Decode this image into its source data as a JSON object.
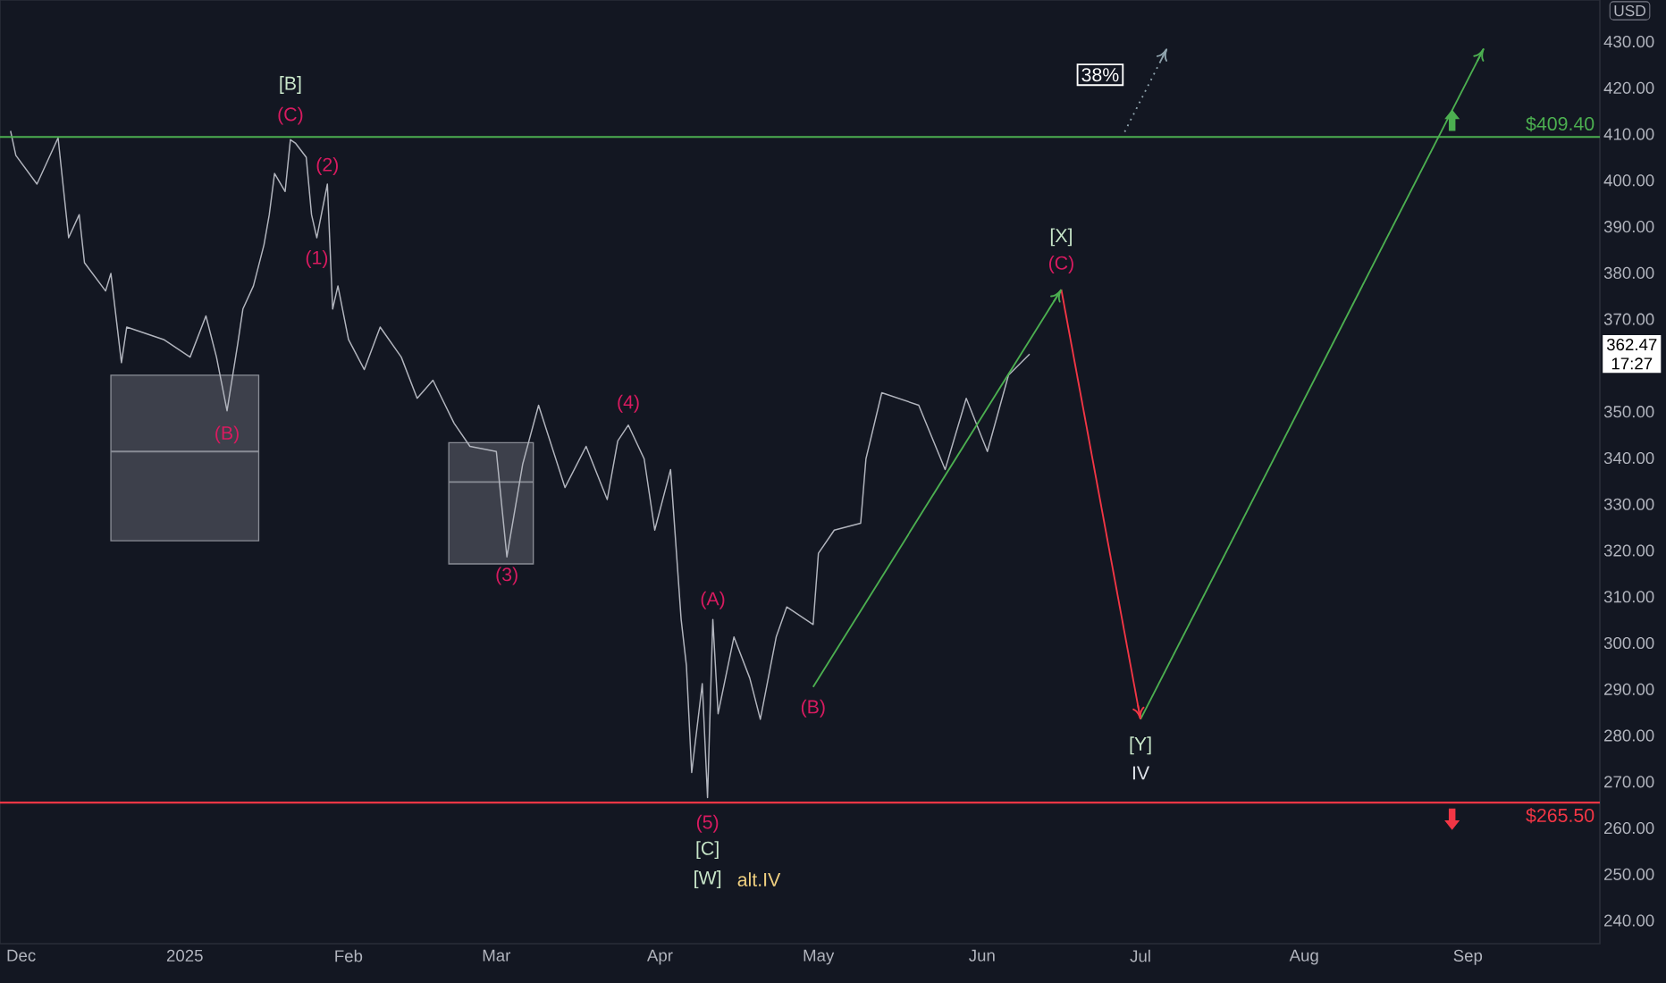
{
  "chart_data": {
    "type": "line",
    "xlim": [
      "2024-11-27",
      "2025-09-26"
    ],
    "ylim": [
      235,
      439
    ],
    "xticks": [
      {
        "value": "2024-12-01",
        "label": "Dec"
      },
      {
        "value": "2025-01-01",
        "label": "2025"
      },
      {
        "value": "2025-02-01",
        "label": "Feb"
      },
      {
        "value": "2025-03-01",
        "label": "Mar"
      },
      {
        "value": "2025-04-01",
        "label": "Apr"
      },
      {
        "value": "2025-05-01",
        "label": "May"
      },
      {
        "value": "2025-06-01",
        "label": "Jun"
      },
      {
        "value": "2025-07-01",
        "label": "Jul"
      },
      {
        "value": "2025-08-01",
        "label": "Aug"
      },
      {
        "value": "2025-09-01",
        "label": "Sep"
      }
    ],
    "yticks": [
      {
        "value": 240,
        "label": "240.00"
      },
      {
        "value": 250,
        "label": "250.00"
      },
      {
        "value": 260,
        "label": "260.00"
      },
      {
        "value": 270,
        "label": "270.00"
      },
      {
        "value": 280,
        "label": "280.00"
      },
      {
        "value": 290,
        "label": "290.00"
      },
      {
        "value": 300,
        "label": "300.00"
      },
      {
        "value": 310,
        "label": "310.00"
      },
      {
        "value": 320,
        "label": "320.00"
      },
      {
        "value": 330,
        "label": "330.00"
      },
      {
        "value": 340,
        "label": "340.00"
      },
      {
        "value": 350,
        "label": "350.00"
      },
      {
        "value": 370,
        "label": "370.00"
      },
      {
        "value": 380,
        "label": "380.00"
      },
      {
        "value": 390,
        "label": "390.00"
      },
      {
        "value": 400,
        "label": "400.00"
      },
      {
        "value": 410,
        "label": "410.00"
      },
      {
        "value": 420,
        "label": "420.00"
      },
      {
        "value": 430,
        "label": "430.00"
      }
    ],
    "grid": false,
    "series": [
      {
        "color": "#8a8d96",
        "x": [
          "2024-12-18",
          "2025-01-15"
        ],
        "values": [
          341.4,
          341.4
        ],
        "lower": [
          322.1,
          322.1
        ],
        "upper": [
          357.9,
          357.9
        ]
      },
      {
        "color": "#8a8d96",
        "x": [
          "2025-02-20",
          "2025-03-08"
        ],
        "values": [
          334.8,
          334.8
        ],
        "lower": [
          317.1,
          317.1
        ],
        "upper": [
          343.3,
          343.3
        ]
      },
      {
        "color": "#b2b5be",
        "x": [
          "2024-11-29",
          "2024-11-30",
          "2024-12-04",
          "2024-12-08",
          "2024-12-10",
          "2024-12-12",
          "2024-12-13",
          "2024-12-17",
          "2024-12-18",
          "2024-12-20",
          "2024-12-21",
          "2024-12-28",
          "2025-01-02",
          "2025-01-05",
          "2025-01-07",
          "2025-01-09",
          "2025-01-11",
          "2025-01-12",
          "2025-01-14",
          "2025-01-16",
          "2025-01-17",
          "2025-01-18",
          "2025-01-20",
          "2025-01-21",
          "2025-01-22",
          "2025-01-24",
          "2025-01-25",
          "2025-01-26",
          "2025-01-28",
          "2025-01-29",
          "2025-01-30",
          "2025-02-01",
          "2025-02-04",
          "2025-02-07",
          "2025-02-11",
          "2025-02-14",
          "2025-02-17",
          "2025-02-21",
          "2025-02-24",
          "2025-03-01",
          "2025-03-03",
          "2025-03-06",
          "2025-03-09",
          "2025-03-14",
          "2025-03-18",
          "2025-03-22",
          "2025-03-24",
          "2025-03-26",
          "2025-03-29",
          "2025-03-31",
          "2025-04-03",
          "2025-04-05",
          "2025-04-06",
          "2025-04-07",
          "2025-04-09",
          "2025-04-10",
          "2025-04-11",
          "2025-04-12",
          "2025-04-15",
          "2025-04-18",
          "2025-04-20",
          "2025-04-23",
          "2025-04-25",
          "2025-04-30",
          "2025-05-01",
          "2025-05-04",
          "2025-05-09",
          "2025-05-10",
          "2025-05-13",
          "2025-05-20",
          "2025-05-25",
          "2025-05-29",
          "2025-06-02",
          "2025-06-06",
          "2025-06-10"
        ],
        "values": [
          410.7,
          405.4,
          399.2,
          409.2,
          387.6,
          392.6,
          382.2,
          376.1,
          379.9,
          360.6,
          368.3,
          365.6,
          361.8,
          370.7,
          361.8,
          350.2,
          364.5,
          372.2,
          377.2,
          386.1,
          392.6,
          401.5,
          397.6,
          408.8,
          408.0,
          405.0,
          392.6,
          387.6,
          399.2,
          372.2,
          377.2,
          365.6,
          359.1,
          368.3,
          361.8,
          352.9,
          356.8,
          347.5,
          342.5,
          341.4,
          318.6,
          338.7,
          351.4,
          333.6,
          342.5,
          331.0,
          343.7,
          347.1,
          339.8,
          324.4,
          337.5,
          305.1,
          295.1,
          272.0,
          291.2,
          266.6,
          305.1,
          284.7,
          301.3,
          292.4,
          283.5,
          301.3,
          307.8,
          304.0,
          319.4,
          324.4,
          325.9,
          339.8,
          354.1,
          351.4,
          337.5,
          352.9,
          341.4,
          357.9,
          362.47
        ]
      },
      {
        "color": "#4caf50",
        "x": [
          "2025-04-30",
          "2025-06-16"
        ],
        "values": [
          290.5,
          376.4
        ]
      },
      {
        "color": "#f23645",
        "x": [
          "2025-06-16",
          "2025-07-01"
        ],
        "values": [
          376.4,
          283.5
        ]
      },
      {
        "color": "#4caf50",
        "x": [
          "2025-07-01",
          "2025-09-04"
        ],
        "values": [
          283.5,
          428.5
        ]
      },
      {
        "color": "#90a4ae",
        "line_style": "dotted",
        "x": [
          "2025-06-28",
          "2025-07-06"
        ],
        "values": [
          410.5,
          428.5
        ]
      }
    ],
    "ref_lines": [
      {
        "axis": "y",
        "value": 409.4,
        "label": "$409.40",
        "color": "#4caf50"
      },
      {
        "axis": "y",
        "value": 265.5,
        "label": "$265.50",
        "color": "#f23645"
      }
    ],
    "annotations": [
      "USD",
      "362.47",
      "17:27",
      {
        "text": "[B]",
        "x": "2025-01-21",
        "y": 408.8
      },
      {
        "text": "(C)",
        "x": "2025-01-21",
        "y": 408.8
      },
      {
        "text": "(2)",
        "x": "2025-01-28",
        "y": 399.2
      },
      {
        "text": "(1)",
        "x": "2025-01-26",
        "y": 387.6
      },
      {
        "text": "(B)",
        "x": "2025-01-09",
        "y": 350.2
      },
      {
        "text": "(3)",
        "x": "2025-03-03",
        "y": 318.6
      },
      {
        "text": "(4)",
        "x": "2025-03-26",
        "y": 347.1
      },
      {
        "text": "(A)",
        "x": "2025-04-11",
        "y": 305.1
      },
      {
        "text": "(5)",
        "x": "2025-04-10",
        "y": 266.6
      },
      {
        "text": "[C]",
        "x": "2025-04-10",
        "y": 266.6
      },
      "[W]",
      "alt.IV",
      {
        "text": "(B)",
        "x": "2025-04-30",
        "y": 290.5
      },
      {
        "text": "[X]",
        "x": "2025-06-16",
        "y": 376.4
      },
      {
        "text": "(C)",
        "x": "2025-06-16",
        "y": 376.4
      },
      {
        "text": "[Y]",
        "x": "2025-07-01",
        "y": 283.5
      },
      {
        "text": "IV",
        "x": "2025-07-01",
        "y": 283.5
      },
      {
        "text": "38%",
        "x": "2025-07-06",
        "y": 428.5
      }
    ]
  }
}
